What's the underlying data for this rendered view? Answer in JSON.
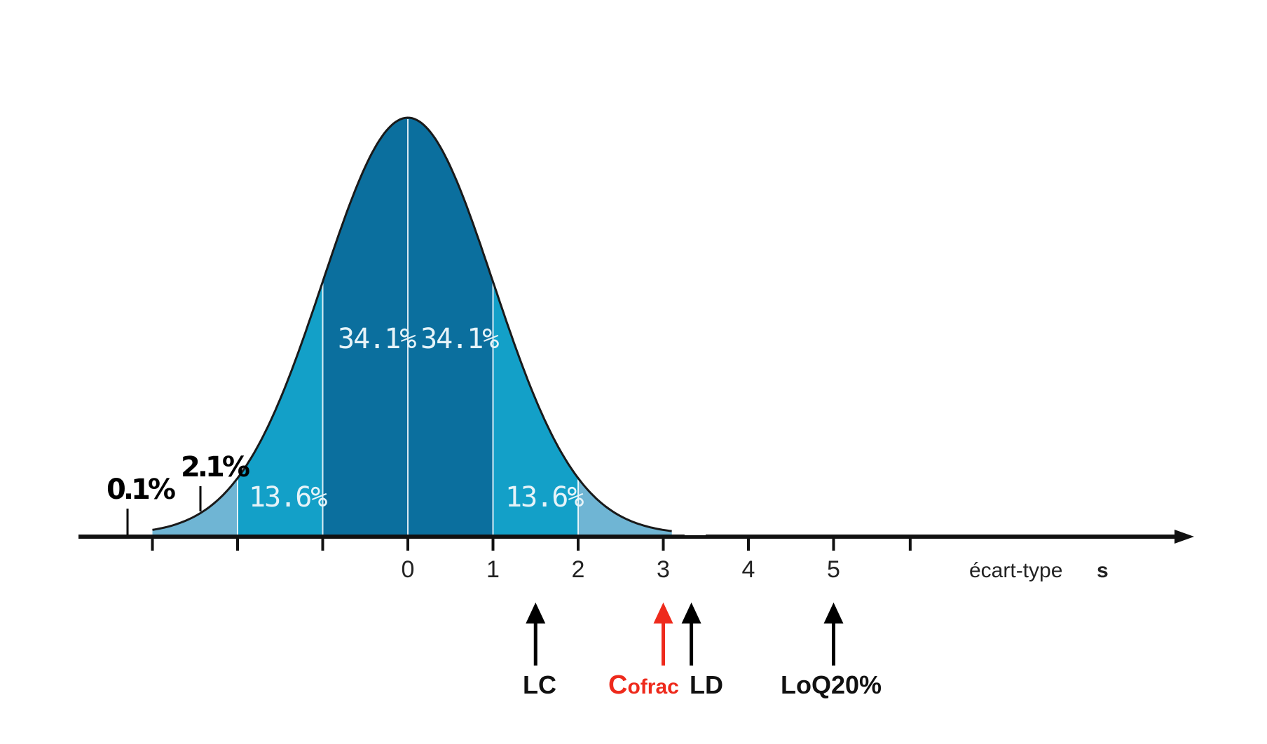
{
  "diagram": {
    "colors": {
      "band_1sd": "#0b6f9e",
      "band_2sd": "#13a0c8",
      "band_3sd": "#6fb5d4",
      "outline": "#1a1a1a",
      "axis": "#111111",
      "marker": "#000000",
      "marker_highlight": "#ee2a1c"
    },
    "region_labels": {
      "left_inner": "34.1%",
      "right_inner": "34.1%",
      "left_middle": "13.6%",
      "right_middle": "13.6%",
      "left_outer": "2.1%",
      "left_tail": "0.1%"
    },
    "axis": {
      "tick_labels": [
        "0",
        "1",
        "2",
        "3",
        "4",
        "5"
      ],
      "title": "écart-type",
      "symbol": "s"
    },
    "markers": [
      {
        "id": "lc",
        "value": 1.5,
        "label": "LC",
        "highlight": false
      },
      {
        "id": "cofrac",
        "value": 3.0,
        "label_first": "C",
        "label_rest": "ofrac",
        "highlight": true
      },
      {
        "id": "ld",
        "value": 3.33,
        "label": "LD",
        "highlight": false
      },
      {
        "id": "loq",
        "value": 5.0,
        "label": "LoQ20%",
        "highlight": false
      }
    ]
  }
}
